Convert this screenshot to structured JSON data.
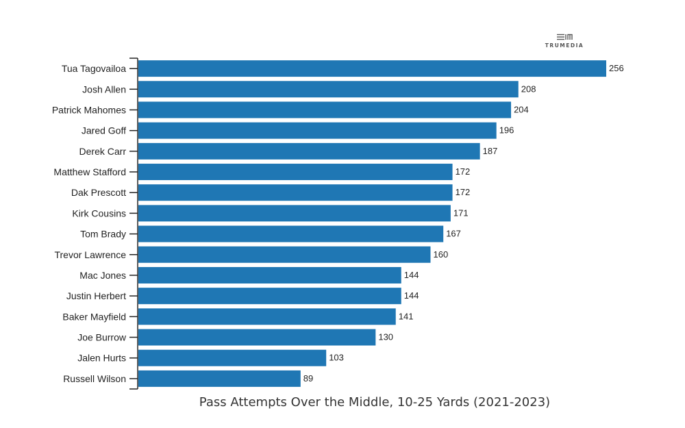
{
  "brand": {
    "logo_text": "TRUMEDIA",
    "logo_icon": "trumedia-logo-icon"
  },
  "chart_data": {
    "type": "bar",
    "orientation": "horizontal",
    "categories": [
      "Tua Tagovailoa",
      "Josh Allen",
      "Patrick Mahomes",
      "Jared Goff",
      "Derek Carr",
      "Matthew Stafford",
      "Dak Prescott",
      "Kirk Cousins",
      "Tom Brady",
      "Trevor Lawrence",
      "Mac Jones",
      "Justin Herbert",
      "Baker Mayfield",
      "Joe Burrow",
      "Jalen Hurts",
      "Russell Wilson"
    ],
    "values": [
      256,
      208,
      204,
      196,
      187,
      172,
      172,
      171,
      167,
      160,
      144,
      144,
      141,
      130,
      103,
      89
    ],
    "xlabel": "Pass Attempts Over the Middle, 10-25 Yards (2021-2023)",
    "xlim": [
      0,
      256
    ],
    "bar_color": "#1f77b4",
    "axis_color": "#222222",
    "grid": false,
    "legend": false
  }
}
